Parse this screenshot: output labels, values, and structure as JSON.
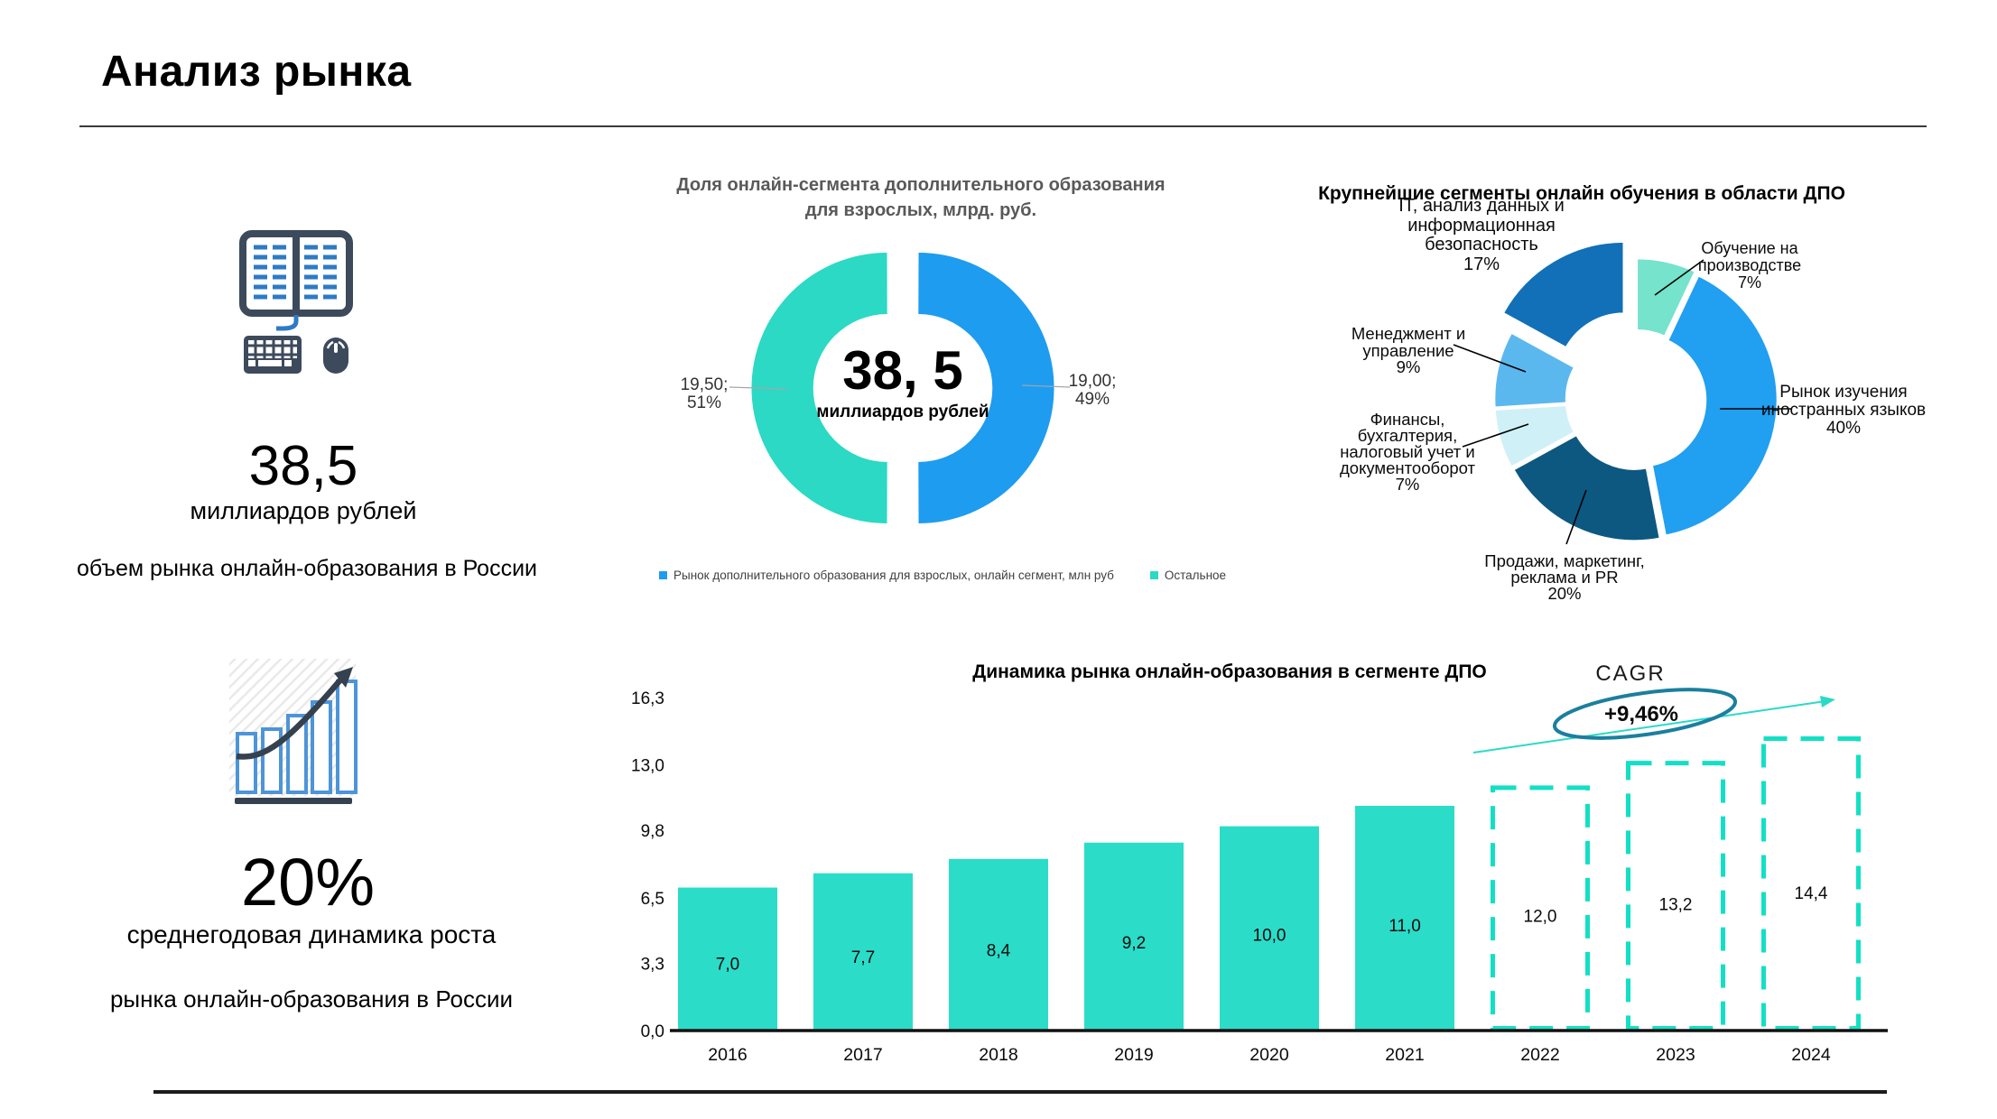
{
  "page": {
    "title": "Анализ рынка"
  },
  "left_stats": {
    "top": {
      "value": "38,5",
      "unit": "миллиардов рублей",
      "caption": "объем рынка онлайн-образования в России"
    },
    "bottom": {
      "value": "20%",
      "caption_line1": "среднегодовая динамика роста",
      "caption_line2": "рынка онлайн-образования в России"
    }
  },
  "chart_data": [
    {
      "id": "share_donut",
      "type": "pie",
      "title": "Доля онлайн-сегмента дополнительного образования для взрослых, млрд. руб.",
      "center_value": "38, 5",
      "center_unit": "миллиардов рублей",
      "slices": [
        {
          "label": "Рынок дополнительного образования для взрослых, онлайн сегмент, млн руб",
          "value": 19.0,
          "percent": 49,
          "color": "#1E9CF0",
          "callout": "19,00;\n49%",
          "side": "right"
        },
        {
          "label": "Остальное",
          "value": 19.5,
          "percent": 51,
          "color": "#2BD9C4",
          "callout": "19,50;\n51%",
          "side": "left"
        }
      ],
      "legend_position": "bottom"
    },
    {
      "id": "segments_donut",
      "type": "pie",
      "title": "Крупнейшие сегменты онлайн обучения в области ДПО",
      "segments": [
        {
          "name": "Обучение на производстве",
          "percent": 7,
          "color": "#76E3CC",
          "label": "Обучение на\nпроизводстве\n7%"
        },
        {
          "name": "Рынок изучения иностранных языков",
          "percent": 40,
          "color": "#219FF1",
          "label": "Рынок изучения\nиностранных языков\n40%"
        },
        {
          "name": "Продажи, маркетинг, реклама и PR",
          "percent": 20,
          "color": "#0D5881",
          "label": "Продажи, маркетинг,\nреклама и PR\n20%"
        },
        {
          "name": "Финансы, бухгалтерия, налоговый учет и документооборот",
          "percent": 7,
          "color": "#CFF0F6",
          "label": "Финансы,\nбухгалтерия,\nналоговый учет и\nдокументооборот\n7%"
        },
        {
          "name": "Менеджмент и управление",
          "percent": 9,
          "color": "#5BB8EE",
          "label": "Менеджмент и\nуправление\n9%"
        },
        {
          "name": "IT, анализ данных и информационная безопасность",
          "percent": 17,
          "color": "#1170B8",
          "label": "IT, анализ данных и\nинформационная\nбезопасность\n17%",
          "exploded": true
        }
      ]
    },
    {
      "id": "dynamics_bar",
      "type": "bar",
      "title": "Динамика рынка онлайн-образования в сегменте ДПО",
      "categories": [
        "2016",
        "2017",
        "2018",
        "2019",
        "2020",
        "2021",
        "2022",
        "2023",
        "2024"
      ],
      "values": [
        7.0,
        7.7,
        8.4,
        9.2,
        10.0,
        11.0,
        12.0,
        13.2,
        14.4
      ],
      "value_labels": [
        "7,0",
        "7,7",
        "8,4",
        "9,2",
        "10,0",
        "11,0",
        "12,0",
        "13,2",
        "14,4"
      ],
      "forecast": [
        false,
        false,
        false,
        false,
        false,
        false,
        true,
        true,
        true
      ],
      "yticks": {
        "values": [
          0,
          3.3,
          6.5,
          9.8,
          13.0,
          16.3
        ],
        "labels": [
          "0,0",
          "3,3",
          "6,5",
          "9,8",
          "13,0",
          "16,3"
        ]
      },
      "ylim": [
        0,
        16.3
      ],
      "grid": false,
      "bar_color": "#2BDCC8",
      "forecast_color": "#12E0C4",
      "cagr": {
        "label": "CAGR",
        "value": "+9,46%",
        "ellipse_color": "#1B7F9E",
        "arrow_color": "#2BD9C7"
      }
    }
  ]
}
